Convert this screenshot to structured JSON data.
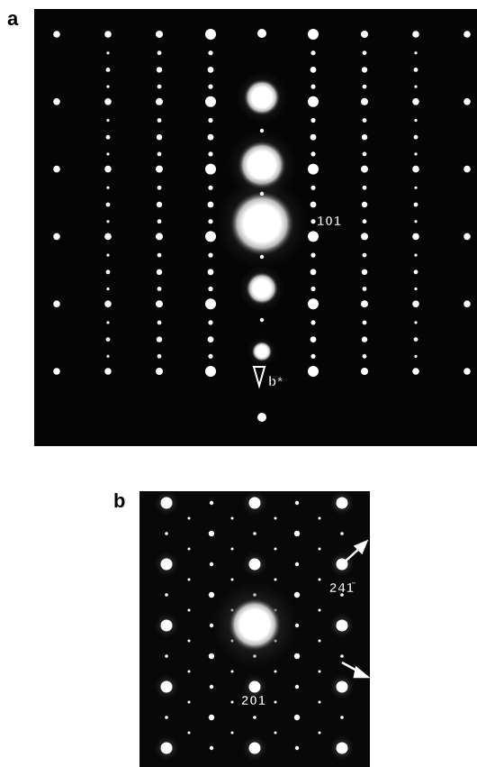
{
  "panel_a": {
    "label": "a",
    "spot_label": "101",
    "axis_label": "b*"
  },
  "panel_b": {
    "label": "b",
    "spot_label": "201",
    "arrow_label": "241̄"
  }
}
